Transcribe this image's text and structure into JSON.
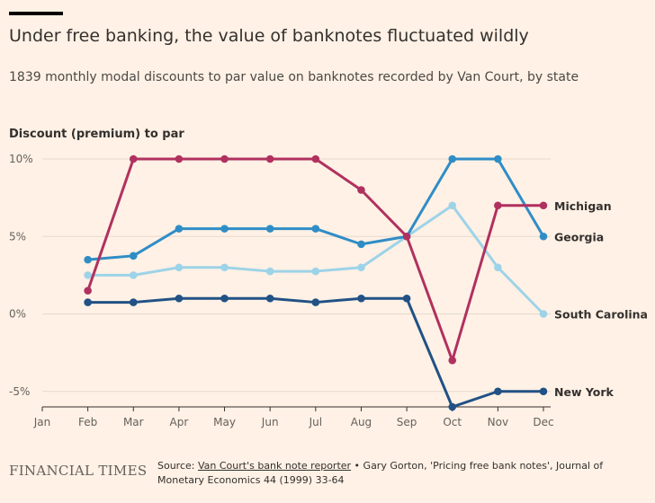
{
  "header": {
    "title": "Under free banking, the value of banknotes fluctuated wildly",
    "subtitle": "1839 monthly modal discounts to par value on banknotes recorded by Van Court, by state"
  },
  "footer": {
    "logo": "FINANCIAL TIMES",
    "source_prefix": "Source: ",
    "source_link": "Van Court's bank note reporter",
    "source_rest": " • Gary Gorton, 'Pricing free bank notes', Journal of Monetary Economics 44 (1999) 33-64"
  },
  "chart_data": {
    "type": "line",
    "title": "Under free banking, the value of banknotes fluctuated wildly",
    "ylabel": "Discount (premium) to par",
    "xlabel": "",
    "categories": [
      "Jan",
      "Feb",
      "Mar",
      "Apr",
      "May",
      "Jun",
      "Jul",
      "Aug",
      "Sep",
      "Oct",
      "Nov",
      "Dec"
    ],
    "ylim": [
      -6,
      10
    ],
    "yticks": [
      10,
      5,
      0,
      -5
    ],
    "ytick_labels": [
      "10%",
      "5%",
      "0%",
      "-5%"
    ],
    "grid": true,
    "series": [
      {
        "name": "South Carolina",
        "color": "#9dd3e8",
        "values": [
          null,
          2.5,
          2.5,
          3.0,
          3.0,
          2.75,
          2.75,
          3.0,
          5.0,
          7.0,
          3.0,
          0.0
        ]
      },
      {
        "name": "Georgia",
        "color": "#2f8dc6",
        "values": [
          null,
          3.5,
          3.75,
          5.5,
          5.5,
          5.5,
          5.5,
          4.5,
          5.0,
          10.0,
          10.0,
          5.0
        ]
      },
      {
        "name": "New York",
        "color": "#215185",
        "values": [
          null,
          0.75,
          0.75,
          1.0,
          1.0,
          1.0,
          0.75,
          1.0,
          1.0,
          -6.0,
          -5.0,
          -5.0
        ]
      },
      {
        "name": "Michigan",
        "color": "#b0315f",
        "values": [
          null,
          1.5,
          10.0,
          10.0,
          10.0,
          10.0,
          10.0,
          8.0,
          5.0,
          -3.0,
          7.0,
          7.0
        ]
      }
    ]
  }
}
